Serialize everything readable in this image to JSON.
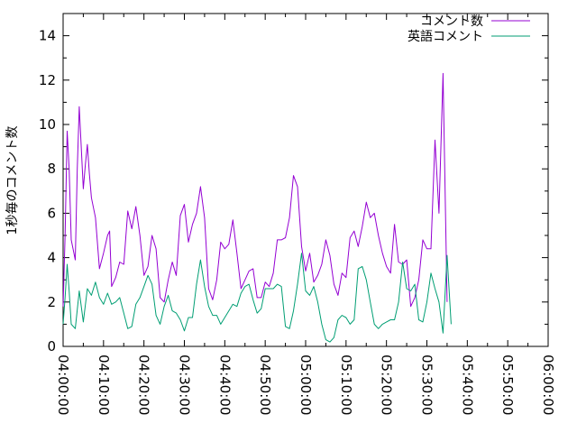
{
  "chart_data": {
    "type": "line",
    "title": "",
    "xlabel": "",
    "ylabel": "1秒毎のコメント数",
    "xlim": [
      "04:00:00",
      "06:00:00"
    ],
    "ylim": [
      0,
      15
    ],
    "x_ticks": [
      "04:00:00",
      "04:10:00",
      "04:20:00",
      "04:30:00",
      "04:40:00",
      "04:50:00",
      "05:00:00",
      "05:10:00",
      "05:20:00",
      "05:30:00",
      "05:40:00",
      "05:50:00",
      "06:00:00"
    ],
    "y_ticks": [
      "0",
      "2",
      "4",
      "6",
      "8",
      "10",
      "12",
      "14"
    ],
    "grid": false,
    "legend_position": "top-right",
    "series": [
      {
        "name": "コメント数",
        "color": "#9400d3",
        "points": [
          [
            "04:00:00",
            1.8
          ],
          [
            "04:00:30",
            5.0
          ],
          [
            "04:01:00",
            9.7
          ],
          [
            "04:01:30",
            8.0
          ],
          [
            "04:02:00",
            4.8
          ],
          [
            "04:03:00",
            3.9
          ],
          [
            "04:03:30",
            8.0
          ],
          [
            "04:04:00",
            10.8
          ],
          [
            "04:05:00",
            7.1
          ],
          [
            "04:05:30",
            8.2
          ],
          [
            "04:06:00",
            9.1
          ],
          [
            "04:06:30",
            7.8
          ],
          [
            "04:07:00",
            6.7
          ],
          [
            "04:08:00",
            5.8
          ],
          [
            "04:09:00",
            3.5
          ],
          [
            "04:10:00",
            4.2
          ],
          [
            "04:11:00",
            5.0
          ],
          [
            "04:11:30",
            5.2
          ],
          [
            "04:12:00",
            2.7
          ],
          [
            "04:13:00",
            3.1
          ],
          [
            "04:14:00",
            3.8
          ],
          [
            "04:15:00",
            3.7
          ],
          [
            "04:16:00",
            6.1
          ],
          [
            "04:17:00",
            5.3
          ],
          [
            "04:18:00",
            6.3
          ],
          [
            "04:19:00",
            5.0
          ],
          [
            "04:20:00",
            3.2
          ],
          [
            "04:21:00",
            3.6
          ],
          [
            "04:22:00",
            5.0
          ],
          [
            "04:23:00",
            4.4
          ],
          [
            "04:24:00",
            2.2
          ],
          [
            "04:25:00",
            2.0
          ],
          [
            "04:26:00",
            3.0
          ],
          [
            "04:27:00",
            3.8
          ],
          [
            "04:28:00",
            3.2
          ],
          [
            "04:29:00",
            5.9
          ],
          [
            "04:30:00",
            6.4
          ],
          [
            "04:31:00",
            4.7
          ],
          [
            "04:32:00",
            5.5
          ],
          [
            "04:33:00",
            6.0
          ],
          [
            "04:34:00",
            7.2
          ],
          [
            "04:35:00",
            5.8
          ],
          [
            "04:36:00",
            2.6
          ],
          [
            "04:37:00",
            2.1
          ],
          [
            "04:38:00",
            3.0
          ],
          [
            "04:39:00",
            4.7
          ],
          [
            "04:40:00",
            4.4
          ],
          [
            "04:41:00",
            4.6
          ],
          [
            "04:42:00",
            5.7
          ],
          [
            "04:43:00",
            4.2
          ],
          [
            "04:44:00",
            2.6
          ],
          [
            "04:45:00",
            3.0
          ],
          [
            "04:46:00",
            3.4
          ],
          [
            "04:47:00",
            3.5
          ],
          [
            "04:48:00",
            2.2
          ],
          [
            "04:49:00",
            2.2
          ],
          [
            "04:50:00",
            2.9
          ],
          [
            "04:51:00",
            2.7
          ],
          [
            "04:52:00",
            3.3
          ],
          [
            "04:53:00",
            4.8
          ],
          [
            "04:54:00",
            4.8
          ],
          [
            "04:55:00",
            4.9
          ],
          [
            "04:56:00",
            5.8
          ],
          [
            "04:57:00",
            7.7
          ],
          [
            "04:58:00",
            7.2
          ],
          [
            "04:59:00",
            4.5
          ],
          [
            "05:00:00",
            3.4
          ],
          [
            "05:01:00",
            4.2
          ],
          [
            "05:02:00",
            2.9
          ],
          [
            "05:03:00",
            3.2
          ],
          [
            "05:04:00",
            3.7
          ],
          [
            "05:05:00",
            4.8
          ],
          [
            "05:06:00",
            4.1
          ],
          [
            "05:07:00",
            2.8
          ],
          [
            "05:08:00",
            2.3
          ],
          [
            "05:09:00",
            3.3
          ],
          [
            "05:10:00",
            3.1
          ],
          [
            "05:11:00",
            4.9
          ],
          [
            "05:12:00",
            5.2
          ],
          [
            "05:13:00",
            4.5
          ],
          [
            "05:14:00",
            5.4
          ],
          [
            "05:15:00",
            6.5
          ],
          [
            "05:16:00",
            5.8
          ],
          [
            "05:17:00",
            6.0
          ],
          [
            "05:18:00",
            5.0
          ],
          [
            "05:19:00",
            4.2
          ],
          [
            "05:20:00",
            3.6
          ],
          [
            "05:21:00",
            3.3
          ],
          [
            "05:22:00",
            5.5
          ],
          [
            "05:23:00",
            3.8
          ],
          [
            "05:24:00",
            3.7
          ],
          [
            "05:25:00",
            3.9
          ],
          [
            "05:26:00",
            1.8
          ],
          [
            "05:27:00",
            2.2
          ],
          [
            "05:28:00",
            3.0
          ],
          [
            "05:29:00",
            4.8
          ],
          [
            "05:30:00",
            4.4
          ],
          [
            "05:31:00",
            4.4
          ],
          [
            "05:32:00",
            9.3
          ],
          [
            "05:33:00",
            6.0
          ],
          [
            "05:34:00",
            12.3
          ],
          [
            "05:35:00",
            2.0
          ]
        ]
      },
      {
        "name": "英語コメント",
        "color": "#009e73",
        "points": [
          [
            "04:00:00",
            1.0
          ],
          [
            "04:00:30",
            2.2
          ],
          [
            "04:01:00",
            3.7
          ],
          [
            "04:01:30",
            2.5
          ],
          [
            "04:02:00",
            1.0
          ],
          [
            "04:03:00",
            0.8
          ],
          [
            "04:04:00",
            2.5
          ],
          [
            "04:05:00",
            1.1
          ],
          [
            "04:06:00",
            2.6
          ],
          [
            "04:07:00",
            2.3
          ],
          [
            "04:08:00",
            2.9
          ],
          [
            "04:09:00",
            2.2
          ],
          [
            "04:10:00",
            1.9
          ],
          [
            "04:11:00",
            2.4
          ],
          [
            "04:12:00",
            1.9
          ],
          [
            "04:13:00",
            2.0
          ],
          [
            "04:14:00",
            2.2
          ],
          [
            "04:15:00",
            1.5
          ],
          [
            "04:16:00",
            0.8
          ],
          [
            "04:17:00",
            0.9
          ],
          [
            "04:18:00",
            1.9
          ],
          [
            "04:19:00",
            2.2
          ],
          [
            "04:20:00",
            2.7
          ],
          [
            "04:21:00",
            3.2
          ],
          [
            "04:22:00",
            2.8
          ],
          [
            "04:23:00",
            1.4
          ],
          [
            "04:24:00",
            1.0
          ],
          [
            "04:25:00",
            1.8
          ],
          [
            "04:26:00",
            2.3
          ],
          [
            "04:27:00",
            1.6
          ],
          [
            "04:28:00",
            1.5
          ],
          [
            "04:29:00",
            1.2
          ],
          [
            "04:30:00",
            0.7
          ],
          [
            "04:31:00",
            1.3
          ],
          [
            "04:32:00",
            1.3
          ],
          [
            "04:33:00",
            2.8
          ],
          [
            "04:34:00",
            3.9
          ],
          [
            "04:35:00",
            2.7
          ],
          [
            "04:36:00",
            1.8
          ],
          [
            "04:37:00",
            1.4
          ],
          [
            "04:38:00",
            1.4
          ],
          [
            "04:39:00",
            1.0
          ],
          [
            "04:40:00",
            1.3
          ],
          [
            "04:41:00",
            1.6
          ],
          [
            "04:42:00",
            1.9
          ],
          [
            "04:43:00",
            1.8
          ],
          [
            "04:44:00",
            2.4
          ],
          [
            "04:45:00",
            2.7
          ],
          [
            "04:46:00",
            2.8
          ],
          [
            "04:47:00",
            2.1
          ],
          [
            "04:48:00",
            1.5
          ],
          [
            "04:49:00",
            1.7
          ],
          [
            "04:50:00",
            2.6
          ],
          [
            "04:51:00",
            2.6
          ],
          [
            "04:52:00",
            2.6
          ],
          [
            "04:53:00",
            2.8
          ],
          [
            "04:54:00",
            2.7
          ],
          [
            "04:55:00",
            0.9
          ],
          [
            "04:56:00",
            0.8
          ],
          [
            "04:57:00",
            1.6
          ],
          [
            "04:58:00",
            2.8
          ],
          [
            "04:59:00",
            4.2
          ],
          [
            "05:00:00",
            2.5
          ],
          [
            "05:01:00",
            2.3
          ],
          [
            "05:02:00",
            2.7
          ],
          [
            "05:03:00",
            2.0
          ],
          [
            "05:04:00",
            1.0
          ],
          [
            "05:05:00",
            0.3
          ],
          [
            "05:06:00",
            0.2
          ],
          [
            "05:07:00",
            0.4
          ],
          [
            "05:08:00",
            1.2
          ],
          [
            "05:09:00",
            1.4
          ],
          [
            "05:10:00",
            1.3
          ],
          [
            "05:11:00",
            1.0
          ],
          [
            "05:12:00",
            1.2
          ],
          [
            "05:13:00",
            3.5
          ],
          [
            "05:14:00",
            3.6
          ],
          [
            "05:15:00",
            3.0
          ],
          [
            "05:16:00",
            2.0
          ],
          [
            "05:17:00",
            1.0
          ],
          [
            "05:18:00",
            0.8
          ],
          [
            "05:19:00",
            1.0
          ],
          [
            "05:20:00",
            1.1
          ],
          [
            "05:21:00",
            1.2
          ],
          [
            "05:22:00",
            1.2
          ],
          [
            "05:23:00",
            2.0
          ],
          [
            "05:24:00",
            3.8
          ],
          [
            "05:25:00",
            2.6
          ],
          [
            "05:26:00",
            2.5
          ],
          [
            "05:27:00",
            2.8
          ],
          [
            "05:28:00",
            1.2
          ],
          [
            "05:29:00",
            1.1
          ],
          [
            "05:30:00",
            2.0
          ],
          [
            "05:31:00",
            3.3
          ],
          [
            "05:32:00",
            2.6
          ],
          [
            "05:33:00",
            2.0
          ],
          [
            "05:34:00",
            0.6
          ],
          [
            "05:35:00",
            4.1
          ],
          [
            "05:36:00",
            1.0
          ]
        ]
      }
    ]
  }
}
